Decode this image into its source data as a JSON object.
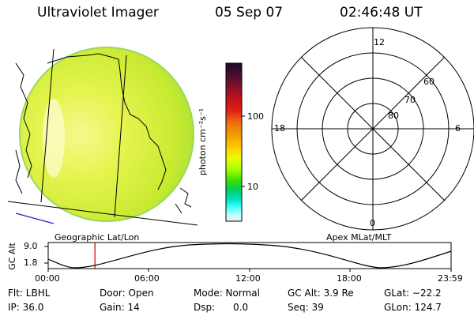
{
  "header": {
    "instrument": "Ultraviolet Imager",
    "date": "05 Sep 07",
    "time": "02:46:48 UT"
  },
  "colorbar": {
    "unit_label": "photon cm⁻²s⁻¹",
    "ticks": [
      "100",
      "10"
    ],
    "colors": [
      "#1a0a2a",
      "#5a1030",
      "#b01020",
      "#e02010",
      "#f07010",
      "#f0a000",
      "#ffd000",
      "#e8ff00",
      "#a8ff00",
      "#40e000",
      "#00d060",
      "#00e0c0",
      "#40ffff",
      "#c0ffff",
      "#f0f0f0"
    ]
  },
  "left_panel": {
    "caption": "Geographic Lat/Lon",
    "disk_color": "#d8f040"
  },
  "right_panel": {
    "caption": "Apex MLat/MLT",
    "mlt_labels": {
      "top": "12",
      "right": "6",
      "bottom": "0",
      "left": "18"
    },
    "mlat_labels": [
      "60",
      "70",
      "80"
    ]
  },
  "altitude_plot": {
    "ylabel": "GC Alt",
    "yticks": [
      "9.0",
      "1.8"
    ],
    "xticks": [
      "00:00",
      "06:00",
      "12:00",
      "18:00",
      "23:59"
    ],
    "current_time_fraction": 0.116,
    "marker_color": "#c00000"
  },
  "status": {
    "flt": "Flt: LBHL",
    "ip": "IP: 36.0",
    "door": "Door: Open",
    "gain": "Gain: 14",
    "mode": "Mode: Normal",
    "dsp": "Dsp:      0.0",
    "gc_alt": "GC Alt: 3.9 Re",
    "seq": "Seq: 39",
    "glat": "GLat: −22.2",
    "glon": "GLon: 124.7"
  }
}
